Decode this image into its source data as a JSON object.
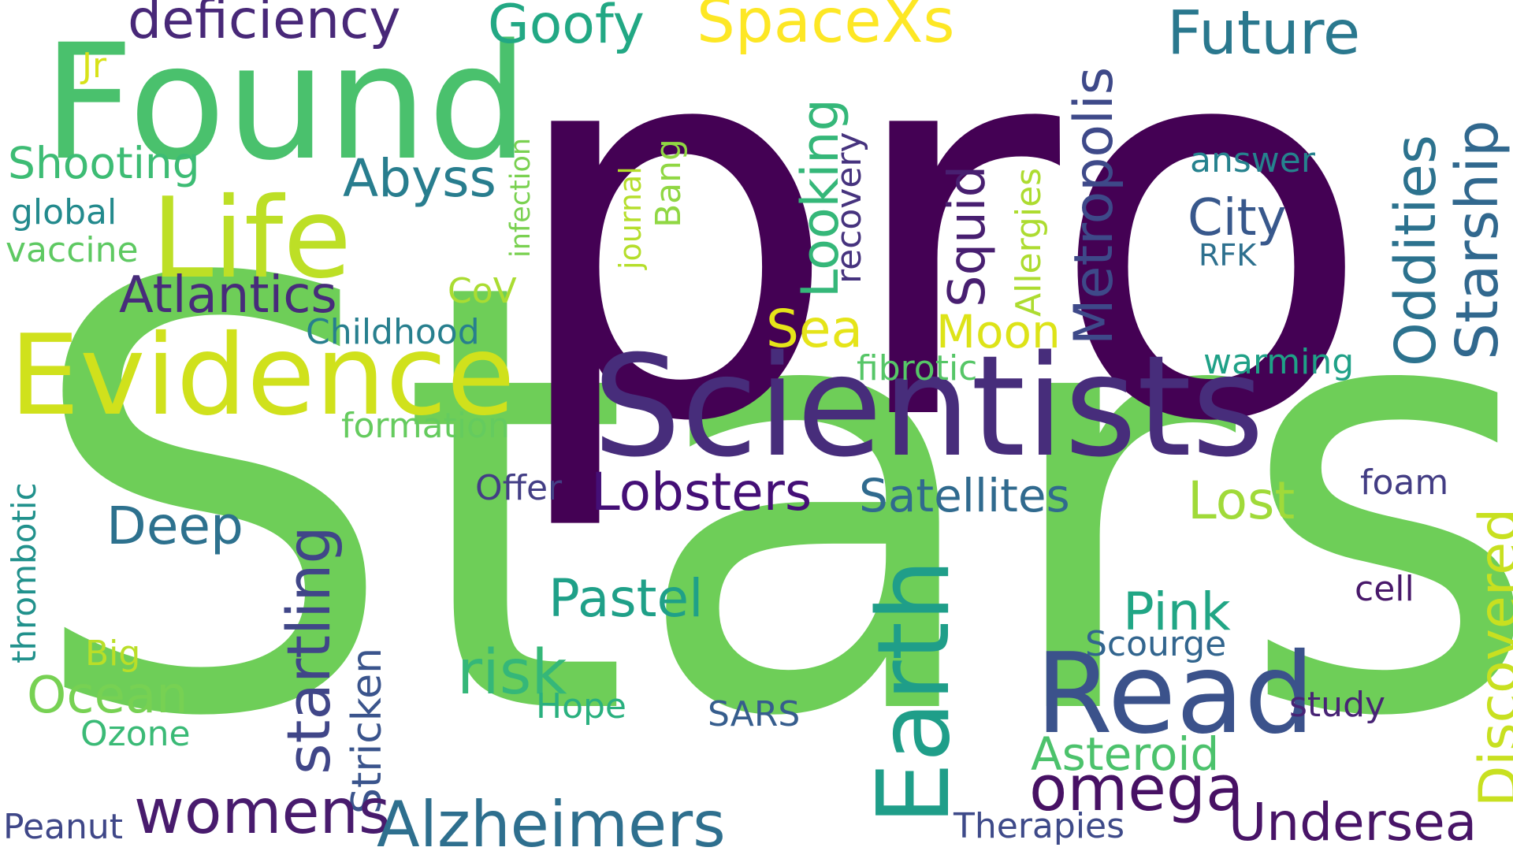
{
  "words": [
    {
      "text": "Stars",
      "color": "#6ece58",
      "vertical": false
    },
    {
      "text": "pro",
      "color": "#440154",
      "vertical": false
    },
    {
      "text": "Scientists",
      "color": "#472d7b",
      "vertical": false
    },
    {
      "text": "Found",
      "color": "#4ac16d",
      "vertical": false
    },
    {
      "text": "Evidence",
      "color": "#d0e11c",
      "vertical": false
    },
    {
      "text": "Life",
      "color": "#bddf26",
      "vertical": false
    },
    {
      "text": "Read",
      "color": "#3b528b",
      "vertical": false
    },
    {
      "text": "Earth",
      "color": "#1f9e89",
      "vertical": true
    },
    {
      "text": "SpaceXs",
      "color": "#fde725",
      "vertical": false
    },
    {
      "text": "Future",
      "color": "#2a788e",
      "vertical": false
    },
    {
      "text": "deficiency",
      "color": "#482878",
      "vertical": false
    },
    {
      "text": "Goofy",
      "color": "#22a884",
      "vertical": false
    },
    {
      "text": "Jr",
      "color": "#d8e219",
      "vertical": false
    },
    {
      "text": "Metropolis",
      "color": "#3e4989",
      "vertical": true
    },
    {
      "text": "Starship",
      "color": "#31688e",
      "vertical": true
    },
    {
      "text": "Oddities",
      "color": "#2c728e",
      "vertical": true
    },
    {
      "text": "Looking",
      "color": "#35b779",
      "vertical": true
    },
    {
      "text": "recovery",
      "color": "#46337e",
      "vertical": true
    },
    {
      "text": "Squid",
      "color": "#481f70",
      "vertical": true
    },
    {
      "text": "Allergies",
      "color": "#addc30",
      "vertical": true
    },
    {
      "text": "infection",
      "color": "#7ad151",
      "vertical": true
    },
    {
      "text": "journal",
      "color": "#b5de2b",
      "vertical": true
    },
    {
      "text": "Bang",
      "color": "#90d743",
      "vertical": true
    },
    {
      "text": "answer",
      "color": "#26828e",
      "vertical": false
    },
    {
      "text": "City",
      "color": "#38588c",
      "vertical": false
    },
    {
      "text": "RFK",
      "color": "#2d708e",
      "vertical": false
    },
    {
      "text": "Shooting",
      "color": "#3dbc74",
      "vertical": false
    },
    {
      "text": "Abyss",
      "color": "#287d8e",
      "vertical": false
    },
    {
      "text": "global",
      "color": "#238a8d",
      "vertical": false
    },
    {
      "text": "vaccine",
      "color": "#5ec962",
      "vertical": false
    },
    {
      "text": "Atlantics",
      "color": "#472c7a",
      "vertical": false
    },
    {
      "text": "CoV",
      "color": "#aadc32",
      "vertical": false
    },
    {
      "text": "Sea",
      "color": "#e5e419",
      "vertical": false
    },
    {
      "text": "Moon",
      "color": "#dde318",
      "vertical": false
    },
    {
      "text": "Childhood",
      "color": "#277f8e",
      "vertical": false
    },
    {
      "text": "fibrotic",
      "color": "#56c667",
      "vertical": false
    },
    {
      "text": "warming",
      "color": "#1fa187",
      "vertical": false
    },
    {
      "text": "formation",
      "color": "#65cb5e",
      "vertical": false
    },
    {
      "text": "thrombotic",
      "color": "#21918c",
      "vertical": true
    },
    {
      "text": "startling",
      "color": "#404688",
      "vertical": true
    },
    {
      "text": "Offer",
      "color": "#433e85",
      "vertical": false
    },
    {
      "text": "Lobsters",
      "color": "#440f76",
      "vertical": false
    },
    {
      "text": "Satellites",
      "color": "#306a8e",
      "vertical": false
    },
    {
      "text": "Lost",
      "color": "#a0da39",
      "vertical": false
    },
    {
      "text": "foam",
      "color": "#433d84",
      "vertical": false
    },
    {
      "text": "Discovered",
      "color": "#c8e020",
      "vertical": true
    },
    {
      "text": "Deep",
      "color": "#2d718e",
      "vertical": false
    },
    {
      "text": "Pastel",
      "color": "#1fa088",
      "vertical": false
    },
    {
      "text": "Pink",
      "color": "#21a685",
      "vertical": false
    },
    {
      "text": "cell",
      "color": "#48186a",
      "vertical": false
    },
    {
      "text": "Stricken",
      "color": "#3a548c",
      "vertical": true
    },
    {
      "text": "risk",
      "color": "#35b779",
      "vertical": false
    },
    {
      "text": "Scourge",
      "color": "#32658e",
      "vertical": false
    },
    {
      "text": "Big",
      "color": "#bade28",
      "vertical": false
    },
    {
      "text": "Ocean",
      "color": "#77d153",
      "vertical": false
    },
    {
      "text": "Hope",
      "color": "#2ab07f",
      "vertical": false
    },
    {
      "text": "SARS",
      "color": "#365d8d",
      "vertical": false
    },
    {
      "text": "study",
      "color": "#482475",
      "vertical": false
    },
    {
      "text": "Ozone",
      "color": "#3aba76",
      "vertical": false
    },
    {
      "text": "Asteroid",
      "color": "#4cc26c",
      "vertical": false
    },
    {
      "text": "omega",
      "color": "#471164",
      "vertical": false
    },
    {
      "text": "Undersea",
      "color": "#481467",
      "vertical": false
    },
    {
      "text": "womens",
      "color": "#481b6d",
      "vertical": false
    },
    {
      "text": "Alzheimers",
      "color": "#2e6f8e",
      "vertical": false
    },
    {
      "text": "Peanut",
      "color": "#3f4788",
      "vertical": false
    },
    {
      "text": "Therapies",
      "color": "#3e4a89",
      "vertical": false
    }
  ]
}
